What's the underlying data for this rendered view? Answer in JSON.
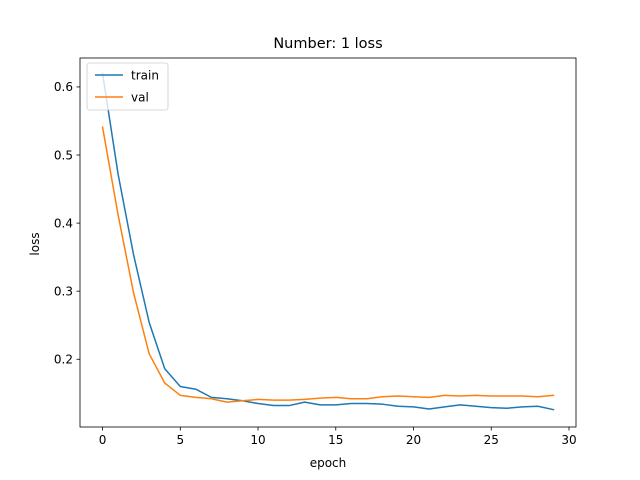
{
  "chart_data": {
    "type": "line",
    "title": "Number: 1 loss",
    "xlabel": "epoch",
    "ylabel": "loss",
    "xlim": [
      -1.45,
      30.45
    ],
    "ylim": [
      0.1005,
      0.6425
    ],
    "xticks": [
      0,
      5,
      10,
      15,
      20,
      25,
      30
    ],
    "yticks": [
      0.2,
      0.3,
      0.4,
      0.5,
      0.6
    ],
    "yticklabels": [
      "0.2",
      "0.3",
      "0.4",
      "0.5",
      "0.6"
    ],
    "grid": false,
    "legend_position": "top-left",
    "x": [
      0,
      1,
      2,
      3,
      4,
      5,
      6,
      7,
      8,
      9,
      10,
      11,
      12,
      13,
      14,
      15,
      16,
      17,
      18,
      19,
      20,
      21,
      22,
      23,
      24,
      25,
      26,
      27,
      28,
      29
    ],
    "series": [
      {
        "name": "train",
        "color": "#1f77b4",
        "values": [
          0.62,
          0.472,
          0.353,
          0.254,
          0.186,
          0.16,
          0.156,
          0.144,
          0.142,
          0.139,
          0.135,
          0.132,
          0.132,
          0.137,
          0.133,
          0.133,
          0.135,
          0.135,
          0.134,
          0.131,
          0.13,
          0.127,
          0.13,
          0.133,
          0.131,
          0.129,
          0.128,
          0.13,
          0.131,
          0.126
        ]
      },
      {
        "name": "val",
        "color": "#ff7f0e",
        "values": [
          0.541,
          0.412,
          0.297,
          0.208,
          0.165,
          0.147,
          0.144,
          0.142,
          0.137,
          0.139,
          0.141,
          0.14,
          0.14,
          0.141,
          0.143,
          0.144,
          0.142,
          0.142,
          0.145,
          0.146,
          0.145,
          0.144,
          0.147,
          0.146,
          0.147,
          0.146,
          0.146,
          0.146,
          0.145,
          0.147
        ]
      }
    ]
  }
}
